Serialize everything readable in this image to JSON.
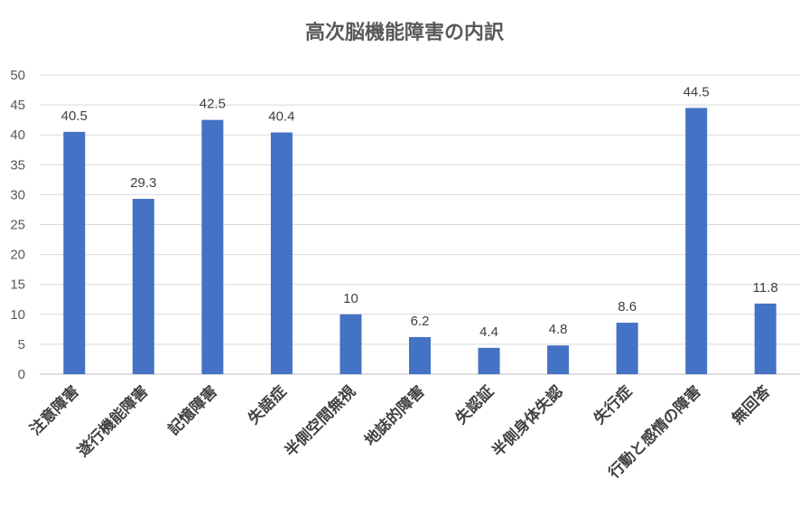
{
  "chart_data": {
    "type": "bar",
    "title": "高次脳機能障害の内訳",
    "categories": [
      "注意障害",
      "遂行機能障害",
      "記憶障害",
      "失語症",
      "半側空間無視",
      "地誌的障害",
      "失認証",
      "半側身体失認",
      "失行症",
      "行動と感情の障害",
      "無回答"
    ],
    "values": [
      40.5,
      29.3,
      42.5,
      40.4,
      10,
      6.2,
      4.4,
      4.8,
      8.6,
      44.5,
      11.8
    ],
    "data_labels": [
      "40.5",
      "29.3",
      "42.5",
      "40.4",
      "10",
      "6.2",
      "4.4",
      "4.8",
      "8.6",
      "44.5",
      "11.8"
    ],
    "yticks": [
      "0",
      "5",
      "10",
      "15",
      "20",
      "25",
      "30",
      "35",
      "40",
      "45",
      "50"
    ],
    "ylim": [
      0,
      50
    ],
    "grid": true,
    "legend": "none",
    "bar_color": "#4472C4",
    "xlabel": "",
    "ylabel": ""
  }
}
